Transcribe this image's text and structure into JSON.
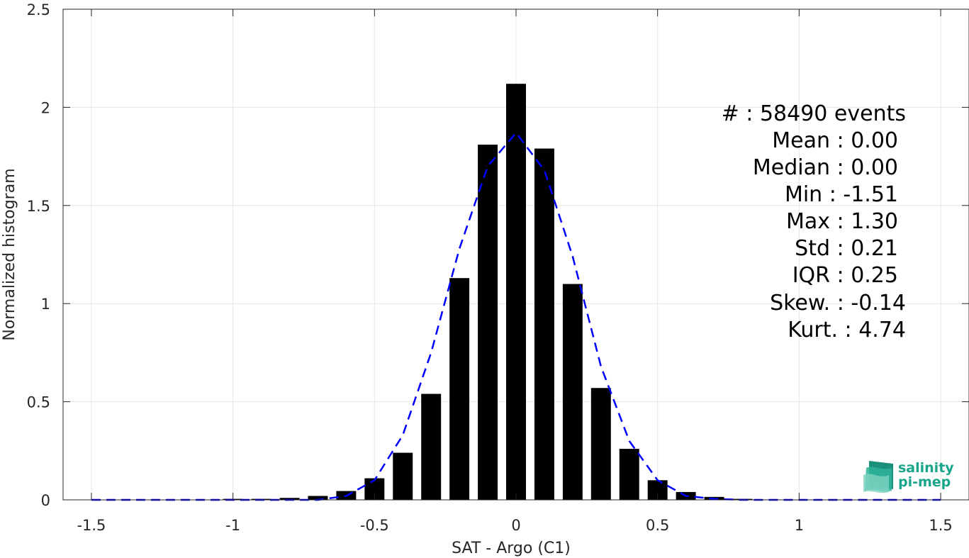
{
  "chart_data": {
    "type": "bar",
    "xlabel": "SAT - Argo (C1)",
    "ylabel": "Normalized histogram",
    "xlim": [
      -1.6,
      1.6
    ],
    "ylim": [
      0,
      2.5
    ],
    "xticks": [
      -1.5,
      -1,
      -0.5,
      0,
      0.5,
      1,
      1.5
    ],
    "xtick_labels": [
      "-1.5",
      "-1",
      "-0.5",
      "0",
      "0.5",
      "1",
      "1.5"
    ],
    "yticks": [
      0,
      0.5,
      1,
      1.5,
      2,
      2.5
    ],
    "ytick_labels": [
      "0",
      "0.5",
      "1",
      "1.5",
      "2",
      "2.5"
    ],
    "grid": true,
    "bar_width": 0.07,
    "bars": {
      "x": [
        -1.5,
        -1.4,
        -1.3,
        -1.2,
        -1.1,
        -1.0,
        -0.9,
        -0.8,
        -0.7,
        -0.6,
        -0.5,
        -0.4,
        -0.3,
        -0.2,
        -0.1,
        0.0,
        0.1,
        0.2,
        0.3,
        0.4,
        0.5,
        0.6,
        0.7,
        0.8,
        0.9,
        1.0,
        1.1,
        1.2,
        1.3
      ],
      "values": [
        0.0,
        0.0,
        0.0,
        0.0,
        0.0,
        0.005,
        0.005,
        0.01,
        0.02,
        0.045,
        0.11,
        0.24,
        0.54,
        1.13,
        1.81,
        2.12,
        1.79,
        1.1,
        0.57,
        0.26,
        0.1,
        0.04,
        0.015,
        0.005,
        0.002,
        0.001,
        0.0,
        0.0,
        0.0
      ],
      "color": "#000000"
    },
    "fit_curve": {
      "style": "dashed",
      "color": "#0000ff",
      "x": [
        -1.5,
        -1.4,
        -1.3,
        -1.2,
        -1.1,
        -1.0,
        -0.9,
        -0.8,
        -0.7,
        -0.6,
        -0.5,
        -0.4,
        -0.3,
        -0.2,
        -0.1,
        0.0,
        0.1,
        0.2,
        0.3,
        0.4,
        0.5,
        0.6,
        0.7,
        0.8,
        0.9,
        1.0,
        1.1,
        1.2,
        1.3,
        1.4,
        1.5
      ],
      "values": [
        0.0,
        0.0,
        0.0,
        0.0,
        0.0,
        0.0,
        0.0,
        0.0,
        0.0,
        0.02,
        0.1,
        0.33,
        0.75,
        1.28,
        1.7,
        1.87,
        1.68,
        1.24,
        0.68,
        0.3,
        0.1,
        0.02,
        0.005,
        0.0,
        0.0,
        0.0,
        0.0,
        0.0,
        0.0,
        0.0,
        0.0
      ]
    },
    "annotations": [
      "#  : 58490 events",
      "Mean : 0.00",
      "Median : 0.00",
      "Min : -1.51",
      "Max : 1.30",
      "Std : 0.21",
      "IQR : 0.25",
      "Skew. : -0.14",
      "Kurt. : 4.74"
    ]
  },
  "logo": {
    "line1": "salinity",
    "line2": "pi-mep",
    "color": "#19a58a"
  }
}
